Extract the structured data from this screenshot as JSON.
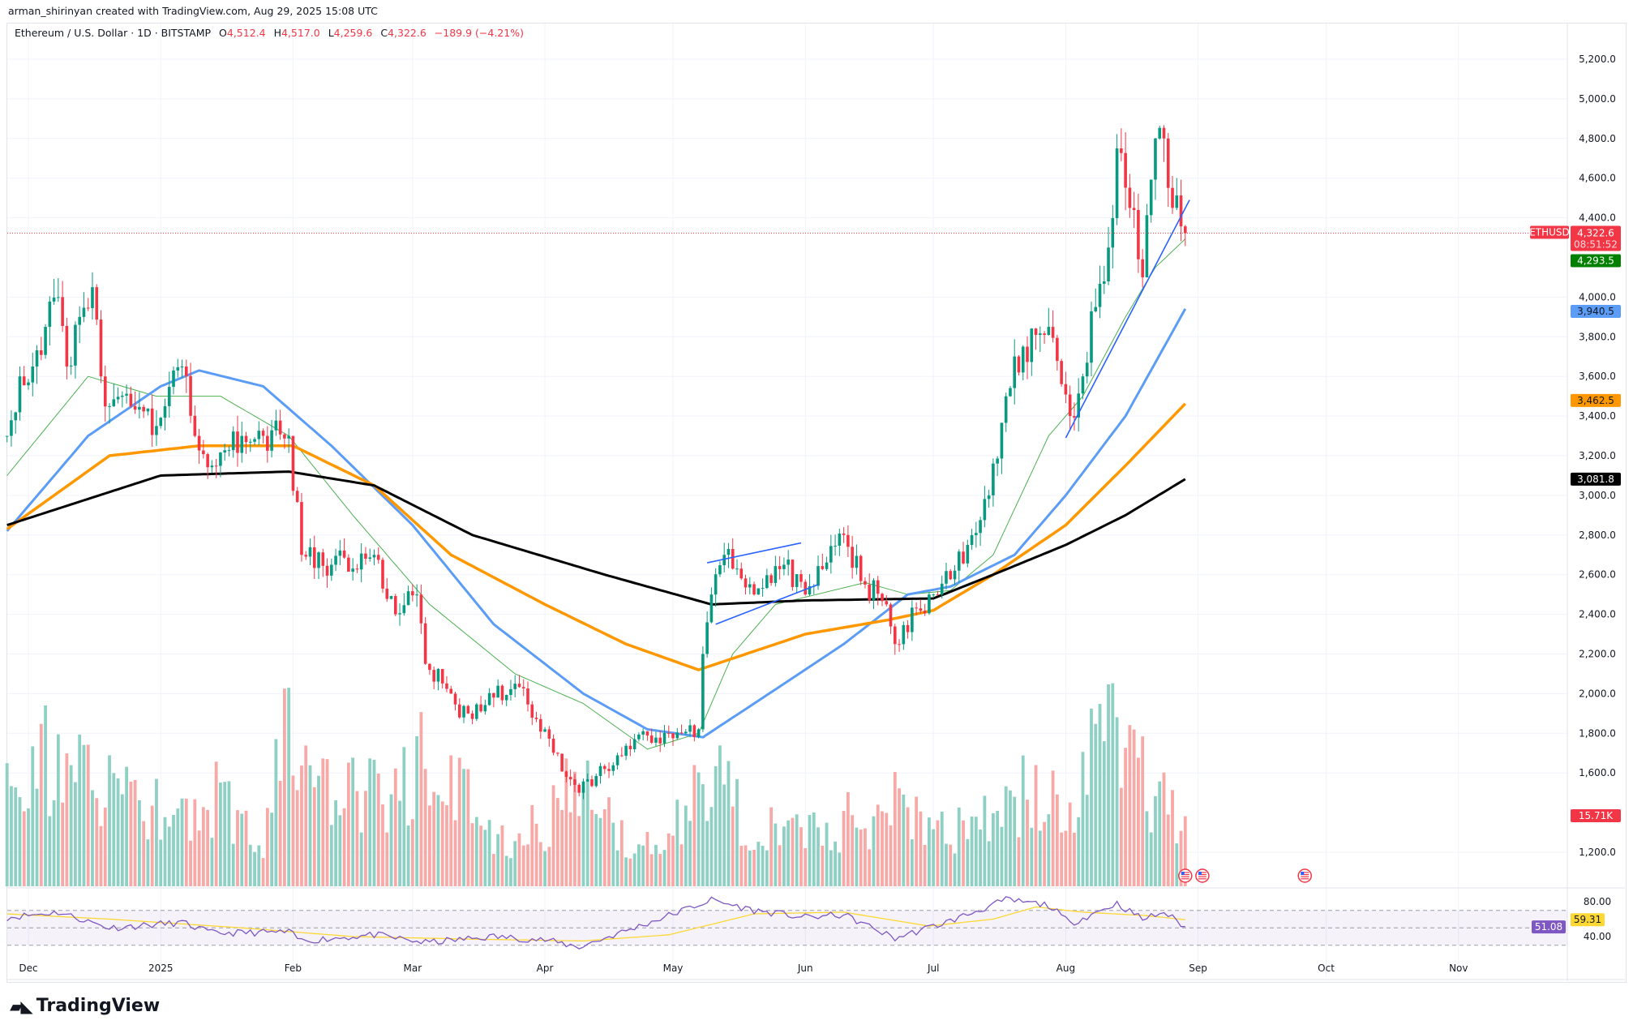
{
  "header": {
    "creator": "arman_shirinyan created with TradingView.com, Aug 29, 2025 15:08 UTC"
  },
  "legend": {
    "symbol": "Ethereum / U.S. Dollar · 1D · BITSTAMP",
    "o_label": "O",
    "o": "4,512.4",
    "h_label": "H",
    "h": "4,517.0",
    "l_label": "L",
    "l": "4,259.6",
    "c_label": "C",
    "c": "4,322.6",
    "change": "−189.9 (−4.21%)"
  },
  "price_tags": {
    "symbol": "ETHUSD",
    "last": "4,322.6",
    "countdown": "08:51:52",
    "ma20": "4,293.5",
    "ma50": "3,940.5",
    "ma100": "3,462.5",
    "ma200": "3,081.8",
    "volume": "15.71K",
    "rsi_ma": "59.31",
    "rsi": "51.08"
  },
  "colors": {
    "up": "#089981",
    "down": "#f23645",
    "vol_up": "#8fd0c4",
    "vol_down": "#f7a9a7",
    "ma20": "#4caf50",
    "ma50": "#5b9cf6",
    "ma100": "#ff9800",
    "ma200": "#000000",
    "trend": "#2962ff",
    "rsi": "#7e57c2",
    "rsi_ma": "#fdd835"
  },
  "branding": {
    "logo": "TradingView"
  },
  "chart_data": {
    "type": "candlestick",
    "title": "Ethereum / U.S. Dollar · 1D · BITSTAMP",
    "y_ticks": [
      "5,200.0",
      "5,000.0",
      "4,800.0",
      "4,600.0",
      "4,400.0",
      "4,000.0",
      "3,800.0",
      "3,600.0",
      "3,400.0",
      "3,200.0",
      "3,000.0",
      "2,800.0",
      "2,600.0",
      "2,400.0",
      "2,200.0",
      "2,000.0",
      "1,800.0",
      "1,600.0",
      "1,200.0"
    ],
    "y_tick_values": [
      5200,
      5000,
      4800,
      4600,
      4400,
      4000,
      3800,
      3600,
      3400,
      3200,
      3000,
      2800,
      2600,
      2400,
      2200,
      2000,
      1800,
      1600,
      1200
    ],
    "ylim": [
      1200,
      5200
    ],
    "x_ticks": [
      {
        "label": "Dec",
        "date": "2024-12-01"
      },
      {
        "label": "2025",
        "date": "2025-01-01"
      },
      {
        "label": "Feb",
        "date": "2025-02-01"
      },
      {
        "label": "Mar",
        "date": "2025-03-01"
      },
      {
        "label": "Apr",
        "date": "2025-04-01"
      },
      {
        "label": "May",
        "date": "2025-05-01"
      },
      {
        "label": "Jun",
        "date": "2025-06-01"
      },
      {
        "label": "Jul",
        "date": "2025-07-01"
      },
      {
        "label": "Aug",
        "date": "2025-08-01"
      },
      {
        "label": "Sep",
        "date": "2025-09-01"
      },
      {
        "label": "Oct",
        "date": "2025-10-01"
      },
      {
        "label": "Nov",
        "date": "2025-11-01"
      }
    ],
    "close_anchors": [
      [
        "2024-11-26",
        3300
      ],
      [
        "2024-11-29",
        3600
      ],
      [
        "2024-12-02",
        3650
      ],
      [
        "2024-12-05",
        3850
      ],
      [
        "2024-12-08",
        4000
      ],
      [
        "2024-12-10",
        3650
      ],
      [
        "2024-12-13",
        3900
      ],
      [
        "2024-12-16",
        4050
      ],
      [
        "2024-12-18",
        3600
      ],
      [
        "2024-12-20",
        3450
      ],
      [
        "2024-12-25",
        3450
      ],
      [
        "2024-12-31",
        3350
      ],
      [
        "2025-01-06",
        3650
      ],
      [
        "2025-01-09",
        3300
      ],
      [
        "2025-01-13",
        3150
      ],
      [
        "2025-01-20",
        3300
      ],
      [
        "2025-01-25",
        3300
      ],
      [
        "2025-01-31",
        3300
      ],
      [
        "2025-02-03",
        2700
      ],
      [
        "2025-02-10",
        2650
      ],
      [
        "2025-02-20",
        2700
      ],
      [
        "2025-02-25",
        2400
      ],
      [
        "2025-03-02",
        2500
      ],
      [
        "2025-03-04",
        2150
      ],
      [
        "2025-03-10",
        2000
      ],
      [
        "2025-03-12",
        1880
      ],
      [
        "2025-03-20",
        1980
      ],
      [
        "2025-03-25",
        2050
      ],
      [
        "2025-04-01",
        1820
      ],
      [
        "2025-04-06",
        1580
      ],
      [
        "2025-04-09",
        1500
      ],
      [
        "2025-04-15",
        1620
      ],
      [
        "2025-04-22",
        1770
      ],
      [
        "2025-04-30",
        1800
      ],
      [
        "2025-05-07",
        1820
      ],
      [
        "2025-05-08",
        2200
      ],
      [
        "2025-05-10",
        2500
      ],
      [
        "2025-05-13",
        2700
      ],
      [
        "2025-05-20",
        2500
      ],
      [
        "2025-05-27",
        2650
      ],
      [
        "2025-06-01",
        2500
      ],
      [
        "2025-06-10",
        2800
      ],
      [
        "2025-06-15",
        2550
      ],
      [
        "2025-06-20",
        2450
      ],
      [
        "2025-06-22",
        2250
      ],
      [
        "2025-06-27",
        2430
      ],
      [
        "2025-07-01",
        2500
      ],
      [
        "2025-07-09",
        2750
      ],
      [
        "2025-07-14",
        3000
      ],
      [
        "2025-07-18",
        3500
      ],
      [
        "2025-07-22",
        3750
      ],
      [
        "2025-07-28",
        3850
      ],
      [
        "2025-08-02",
        3400
      ],
      [
        "2025-08-05",
        3600
      ],
      [
        "2025-08-08",
        3950
      ],
      [
        "2025-08-11",
        4250
      ],
      [
        "2025-08-13",
        4750
      ],
      [
        "2025-08-16",
        4450
      ],
      [
        "2025-08-19",
        4100
      ],
      [
        "2025-08-22",
        4800
      ],
      [
        "2025-08-24",
        4800
      ],
      [
        "2025-08-26",
        4450
      ],
      [
        "2025-08-29",
        4322.6
      ]
    ],
    "ma_series": [
      {
        "name": "SMA 20",
        "color_key": "ma20",
        "width": 1,
        "points": [
          [
            "2024-11-26",
            3100
          ],
          [
            "2024-12-15",
            3600
          ],
          [
            "2024-12-31",
            3500
          ],
          [
            "2025-01-15",
            3500
          ],
          [
            "2025-01-31",
            3300
          ],
          [
            "2025-02-15",
            2900
          ],
          [
            "2025-03-05",
            2450
          ],
          [
            "2025-03-25",
            2100
          ],
          [
            "2025-04-10",
            1950
          ],
          [
            "2025-04-25",
            1720
          ],
          [
            "2025-05-07",
            1800
          ],
          [
            "2025-05-15",
            2200
          ],
          [
            "2025-05-25",
            2450
          ],
          [
            "2025-06-15",
            2560
          ],
          [
            "2025-06-25",
            2500
          ],
          [
            "2025-07-05",
            2520
          ],
          [
            "2025-07-15",
            2700
          ],
          [
            "2025-07-28",
            3300
          ],
          [
            "2025-08-05",
            3500
          ],
          [
            "2025-08-15",
            3900
          ],
          [
            "2025-08-22",
            4150
          ],
          [
            "2025-08-29",
            4293.5
          ]
        ]
      },
      {
        "name": "SMA 50",
        "color_key": "ma50",
        "width": 3,
        "points": [
          [
            "2024-11-26",
            2820
          ],
          [
            "2024-12-15",
            3300
          ],
          [
            "2025-01-01",
            3550
          ],
          [
            "2025-01-10",
            3630
          ],
          [
            "2025-01-25",
            3550
          ],
          [
            "2025-02-10",
            3250
          ],
          [
            "2025-03-01",
            2850
          ],
          [
            "2025-03-20",
            2350
          ],
          [
            "2025-04-10",
            2000
          ],
          [
            "2025-04-25",
            1820
          ],
          [
            "2025-05-08",
            1780
          ],
          [
            "2025-05-20",
            1950
          ],
          [
            "2025-06-10",
            2250
          ],
          [
            "2025-06-25",
            2500
          ],
          [
            "2025-07-05",
            2540
          ],
          [
            "2025-07-20",
            2700
          ],
          [
            "2025-08-01",
            3000
          ],
          [
            "2025-08-15",
            3400
          ],
          [
            "2025-08-29",
            3940.5
          ]
        ]
      },
      {
        "name": "SMA 100",
        "color_key": "ma100",
        "width": 3.5,
        "points": [
          [
            "2024-11-26",
            2830
          ],
          [
            "2024-12-20",
            3200
          ],
          [
            "2025-01-10",
            3250
          ],
          [
            "2025-02-01",
            3250
          ],
          [
            "2025-02-20",
            3050
          ],
          [
            "2025-03-10",
            2700
          ],
          [
            "2025-04-01",
            2450
          ],
          [
            "2025-04-20",
            2250
          ],
          [
            "2025-05-07",
            2120
          ],
          [
            "2025-06-01",
            2300
          ],
          [
            "2025-06-20",
            2370
          ],
          [
            "2025-07-01",
            2420
          ],
          [
            "2025-07-15",
            2600
          ],
          [
            "2025-08-01",
            2850
          ],
          [
            "2025-08-15",
            3150
          ],
          [
            "2025-08-29",
            3462.5
          ]
        ]
      },
      {
        "name": "SMA 200",
        "color_key": "ma200",
        "width": 3,
        "points": [
          [
            "2024-11-26",
            2850
          ],
          [
            "2025-01-01",
            3100
          ],
          [
            "2025-01-31",
            3120
          ],
          [
            "2025-02-20",
            3050
          ],
          [
            "2025-03-15",
            2800
          ],
          [
            "2025-04-15",
            2600
          ],
          [
            "2025-05-10",
            2450
          ],
          [
            "2025-06-01",
            2470
          ],
          [
            "2025-07-01",
            2480
          ],
          [
            "2025-07-15",
            2600
          ],
          [
            "2025-08-01",
            2750
          ],
          [
            "2025-08-15",
            2900
          ],
          [
            "2025-08-29",
            3081.8
          ]
        ]
      }
    ],
    "trendlines": [
      {
        "name": "uptrend-support",
        "from": [
          "2025-08-01",
          3290
        ],
        "to": [
          "2025-08-30",
          4490
        ]
      },
      {
        "name": "flag-upper",
        "from": [
          "2025-05-09",
          2660
        ],
        "to": [
          "2025-05-31",
          2760
        ]
      },
      {
        "name": "flag-lower",
        "from": [
          "2025-05-11",
          2350
        ],
        "to": [
          "2025-06-04",
          2550
        ]
      }
    ],
    "volume_k_anchors": [
      [
        "2024-11-26",
        40
      ],
      [
        "2024-12-10",
        25
      ],
      [
        "2024-12-20",
        28
      ],
      [
        "2025-01-05",
        14
      ],
      [
        "2025-01-13",
        22
      ],
      [
        "2025-01-25",
        14
      ],
      [
        "2025-02-03",
        48
      ],
      [
        "2025-02-10",
        22
      ],
      [
        "2025-02-25",
        22
      ],
      [
        "2025-03-03",
        35
      ],
      [
        "2025-03-10",
        26
      ],
      [
        "2025-03-20",
        12
      ],
      [
        "2025-04-01",
        14
      ],
      [
        "2025-04-07",
        30
      ],
      [
        "2025-04-20",
        12
      ],
      [
        "2025-04-30",
        10
      ],
      [
        "2025-05-08",
        28
      ],
      [
        "2025-05-20",
        16
      ],
      [
        "2025-06-05",
        14
      ],
      [
        "2025-06-22",
        20
      ],
      [
        "2025-07-05",
        12
      ],
      [
        "2025-07-18",
        26
      ],
      [
        "2025-08-01",
        18
      ],
      [
        "2025-08-10",
        36
      ],
      [
        "2025-08-15",
        32
      ],
      [
        "2025-08-22",
        26
      ],
      [
        "2025-08-29",
        15.71
      ]
    ],
    "rsi": {
      "ticks": [
        "80.00",
        "40.00"
      ],
      "tick_values": [
        80,
        40
      ],
      "bands": [
        70,
        30
      ],
      "points": [
        [
          "2024-11-26",
          62
        ],
        [
          "2024-12-08",
          68
        ],
        [
          "2024-12-20",
          50
        ],
        [
          "2025-01-06",
          56
        ],
        [
          "2025-01-13",
          44
        ],
        [
          "2025-01-31",
          45
        ],
        [
          "2025-02-03",
          35
        ],
        [
          "2025-02-20",
          42
        ],
        [
          "2025-03-04",
          33
        ],
        [
          "2025-03-20",
          40
        ],
        [
          "2025-04-01",
          36
        ],
        [
          "2025-04-09",
          28
        ],
        [
          "2025-04-22",
          50
        ],
        [
          "2025-05-10",
          82
        ],
        [
          "2025-05-20",
          70
        ],
        [
          "2025-06-01",
          62
        ],
        [
          "2025-06-10",
          65
        ],
        [
          "2025-06-22",
          38
        ],
        [
          "2025-07-05",
          58
        ],
        [
          "2025-07-18",
          82
        ],
        [
          "2025-07-28",
          76
        ],
        [
          "2025-08-02",
          55
        ],
        [
          "2025-08-13",
          78
        ],
        [
          "2025-08-19",
          60
        ],
        [
          "2025-08-24",
          68
        ],
        [
          "2025-08-29",
          51.08
        ]
      ],
      "ma_points": [
        [
          "2024-11-26",
          66
        ],
        [
          "2024-12-20",
          60
        ],
        [
          "2025-01-20",
          50
        ],
        [
          "2025-02-15",
          40
        ],
        [
          "2025-03-15",
          37
        ],
        [
          "2025-04-10",
          35
        ],
        [
          "2025-04-30",
          42
        ],
        [
          "2025-05-20",
          66
        ],
        [
          "2025-06-10",
          68
        ],
        [
          "2025-06-30",
          52
        ],
        [
          "2025-07-15",
          60
        ],
        [
          "2025-07-25",
          74
        ],
        [
          "2025-08-05",
          68
        ],
        [
          "2025-08-20",
          64
        ],
        [
          "2025-08-29",
          59.31
        ]
      ]
    },
    "events": [
      {
        "date": "2025-08-29"
      },
      {
        "date": "2025-09-02"
      },
      {
        "date": "2025-09-26"
      }
    ]
  }
}
